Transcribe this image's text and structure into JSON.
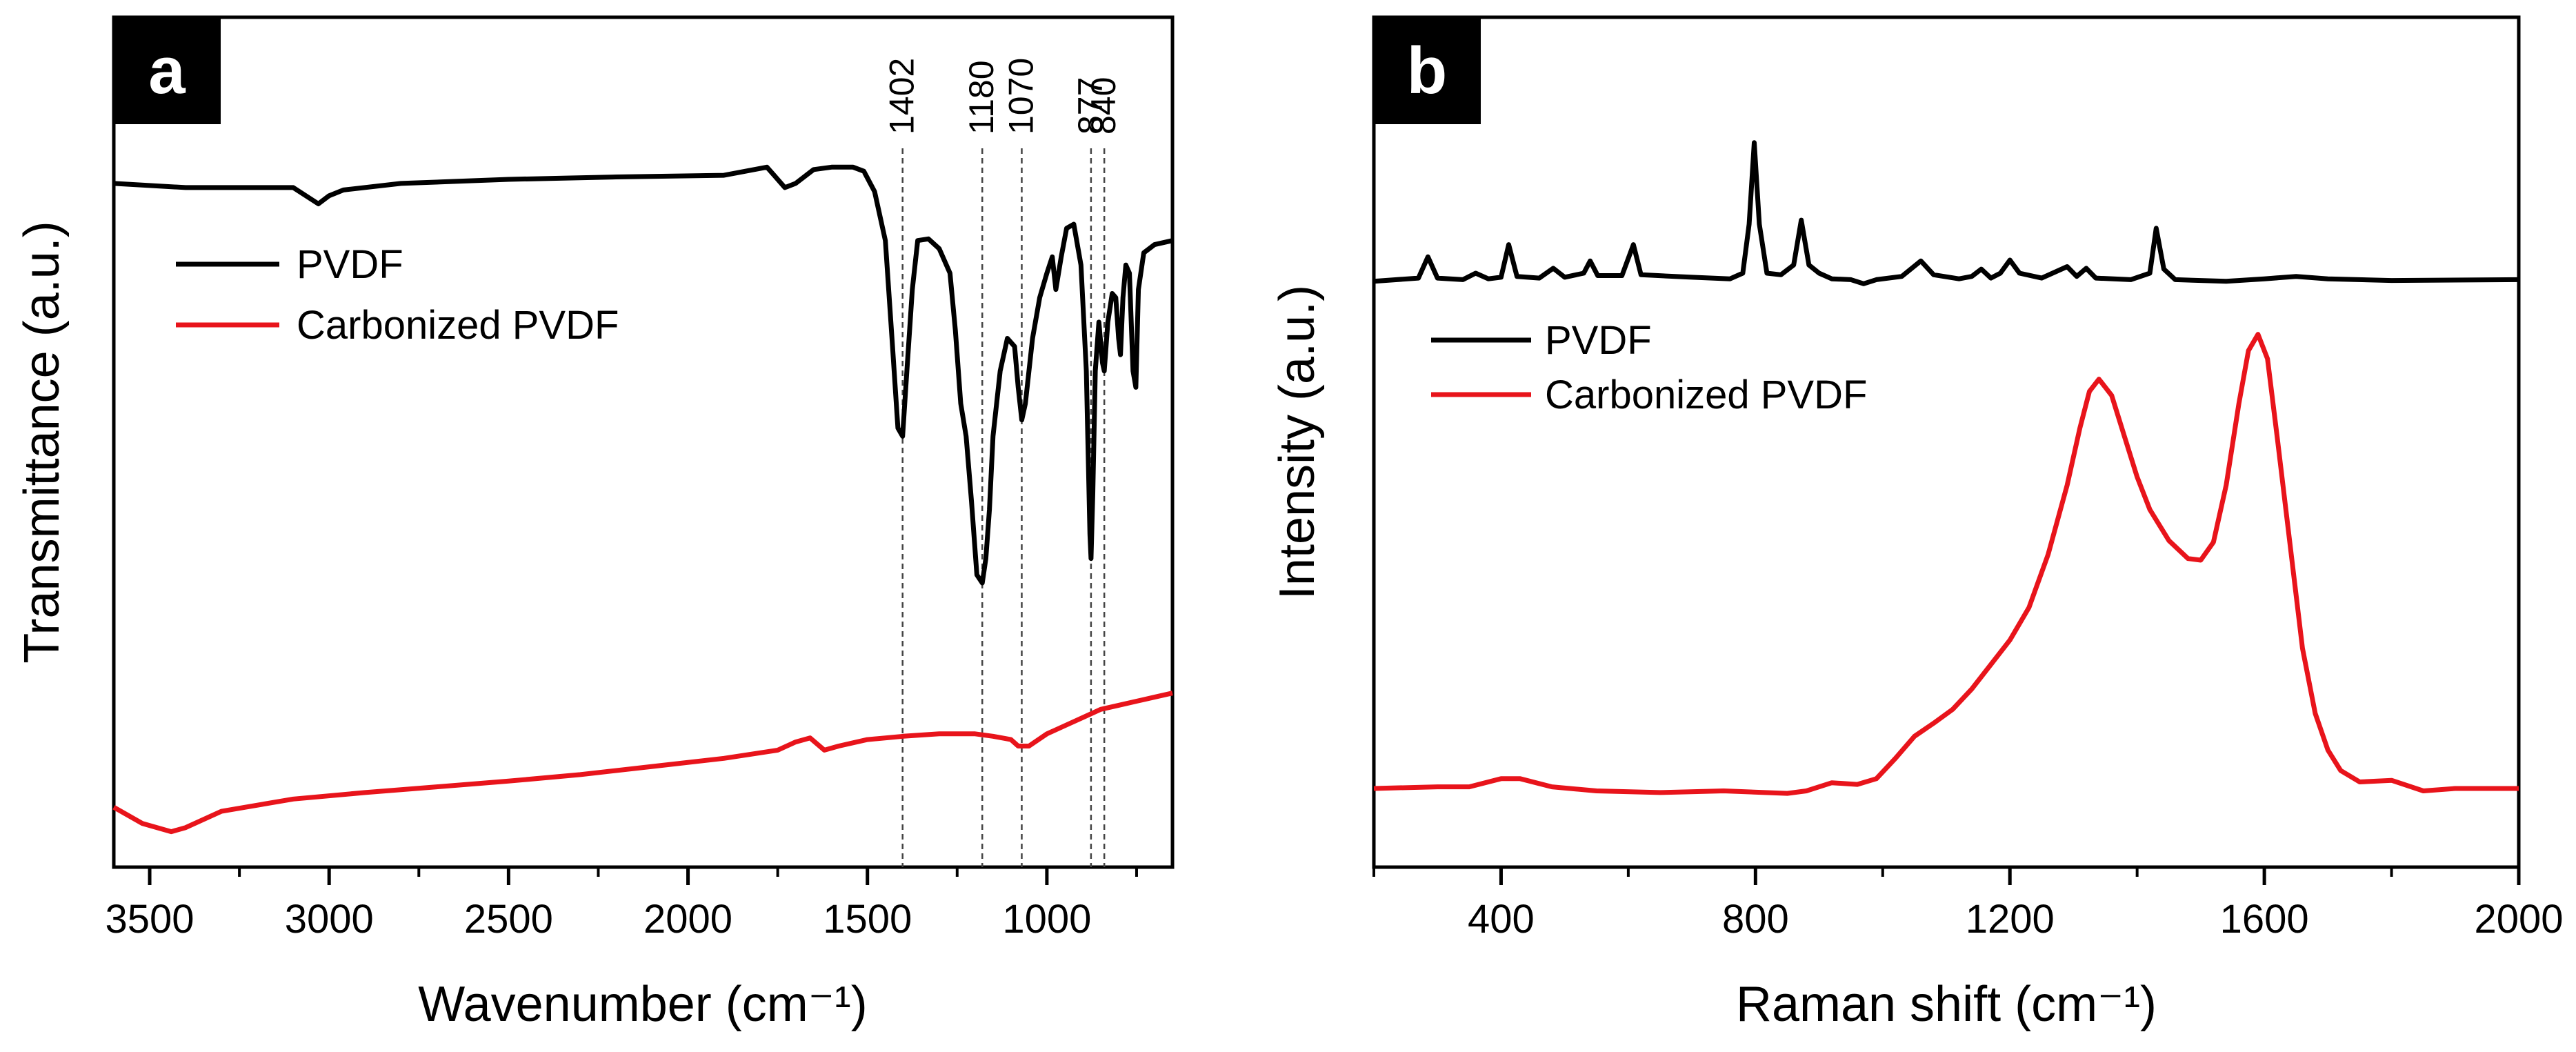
{
  "colors": {
    "pvdf": "#000000",
    "carbonized": "#e8141b",
    "axis": "#000000",
    "peak_line": "#555555"
  },
  "chart_data": [
    {
      "type": "line",
      "panel_label": "a",
      "title": "",
      "xlabel": "Wavenumber (cm⁻¹)",
      "ylabel": "Transmittance (a.u.)",
      "xlim": [
        3600,
        650
      ],
      "ylim": [
        0,
        1
      ],
      "x_reversed": true,
      "xticks": [
        3500,
        3000,
        2500,
        2000,
        1500,
        1000
      ],
      "xtick_labels": [
        "3500",
        "3000",
        "2500",
        "2000",
        "1500",
        "1000"
      ],
      "legend": [
        "PVDF",
        "Carbonized PVDF"
      ],
      "legend_position": "upper-left",
      "annotations": [
        {
          "x": 1402,
          "label": "1402"
        },
        {
          "x": 1180,
          "label": "1180"
        },
        {
          "x": 1070,
          "label": "1070"
        },
        {
          "x": 877,
          "label": "877"
        },
        {
          "x": 840,
          "label": "840"
        }
      ],
      "series": [
        {
          "name": "PVDF",
          "color": "#000000",
          "points": [
            [
              3600,
              0.83
            ],
            [
              3400,
              0.825
            ],
            [
              3100,
              0.825
            ],
            [
              3030,
              0.805
            ],
            [
              3000,
              0.815
            ],
            [
              2960,
              0.822
            ],
            [
              2800,
              0.83
            ],
            [
              2500,
              0.835
            ],
            [
              2200,
              0.838
            ],
            [
              1900,
              0.84
            ],
            [
              1780,
              0.85
            ],
            [
              1760,
              0.84
            ],
            [
              1730,
              0.825
            ],
            [
              1700,
              0.83
            ],
            [
              1650,
              0.847
            ],
            [
              1600,
              0.85
            ],
            [
              1540,
              0.85
            ],
            [
              1510,
              0.845
            ],
            [
              1480,
              0.82
            ],
            [
              1450,
              0.76
            ],
            [
              1430,
              0.63
            ],
            [
              1415,
              0.53
            ],
            [
              1402,
              0.52
            ],
            [
              1390,
              0.6
            ],
            [
              1375,
              0.7
            ],
            [
              1360,
              0.76
            ],
            [
              1330,
              0.762
            ],
            [
              1300,
              0.75
            ],
            [
              1270,
              0.72
            ],
            [
              1255,
              0.65
            ],
            [
              1240,
              0.56
            ],
            [
              1225,
              0.52
            ],
            [
              1210,
              0.44
            ],
            [
              1195,
              0.35
            ],
            [
              1180,
              0.34
            ],
            [
              1170,
              0.37
            ],
            [
              1160,
              0.43
            ],
            [
              1150,
              0.52
            ],
            [
              1130,
              0.6
            ],
            [
              1110,
              0.64
            ],
            [
              1090,
              0.63
            ],
            [
              1080,
              0.58
            ],
            [
              1070,
              0.54
            ],
            [
              1060,
              0.56
            ],
            [
              1040,
              0.64
            ],
            [
              1020,
              0.69
            ],
            [
              1000,
              0.72
            ],
            [
              985,
              0.74
            ],
            [
              975,
              0.7
            ],
            [
              960,
              0.74
            ],
            [
              945,
              0.775
            ],
            [
              925,
              0.78
            ],
            [
              905,
              0.73
            ],
            [
              890,
              0.6
            ],
            [
              880,
              0.4
            ],
            [
              877,
              0.37
            ],
            [
              872,
              0.45
            ],
            [
              865,
              0.6
            ],
            [
              855,
              0.66
            ],
            [
              845,
              0.61
            ],
            [
              840,
              0.6
            ],
            [
              830,
              0.66
            ],
            [
              818,
              0.695
            ],
            [
              808,
              0.69
            ],
            [
              800,
              0.64
            ],
            [
              795,
              0.62
            ],
            [
              788,
              0.69
            ],
            [
              780,
              0.73
            ],
            [
              770,
              0.72
            ],
            [
              760,
              0.6
            ],
            [
              752,
              0.58
            ],
            [
              745,
              0.7
            ],
            [
              730,
              0.745
            ],
            [
              700,
              0.755
            ],
            [
              650,
              0.76
            ]
          ]
        },
        {
          "name": "Carbonized PVDF",
          "color": "#e8141b",
          "points": [
            [
              3600,
              0.065
            ],
            [
              3520,
              0.045
            ],
            [
              3440,
              0.035
            ],
            [
              3400,
              0.04
            ],
            [
              3300,
              0.06
            ],
            [
              3100,
              0.075
            ],
            [
              2900,
              0.083
            ],
            [
              2700,
              0.09
            ],
            [
              2500,
              0.097
            ],
            [
              2300,
              0.105
            ],
            [
              2100,
              0.115
            ],
            [
              1900,
              0.125
            ],
            [
              1750,
              0.135
            ],
            [
              1700,
              0.145
            ],
            [
              1660,
              0.15
            ],
            [
              1620,
              0.135
            ],
            [
              1580,
              0.14
            ],
            [
              1500,
              0.148
            ],
            [
              1400,
              0.152
            ],
            [
              1300,
              0.155
            ],
            [
              1200,
              0.155
            ],
            [
              1150,
              0.152
            ],
            [
              1100,
              0.148
            ],
            [
              1080,
              0.14
            ],
            [
              1050,
              0.14
            ],
            [
              1000,
              0.155
            ],
            [
              950,
              0.165
            ],
            [
              900,
              0.175
            ],
            [
              850,
              0.185
            ],
            [
              800,
              0.19
            ],
            [
              700,
              0.2
            ],
            [
              650,
              0.205
            ]
          ]
        }
      ]
    },
    {
      "type": "line",
      "panel_label": "b",
      "title": "",
      "xlabel": "Raman shift (cm⁻¹)",
      "ylabel": "Intensity (a.u.)",
      "xlim": [
        200,
        2000
      ],
      "ylim": [
        0,
        1
      ],
      "xticks": [
        400,
        800,
        1200,
        1600,
        2000
      ],
      "xtick_labels": [
        "400",
        "800",
        "1200",
        "1600",
        "2000"
      ],
      "legend": [
        "PVDF",
        "Carbonized PVDF"
      ],
      "legend_position": "middle-left",
      "series": [
        {
          "name": "PVDF",
          "color": "#000000",
          "points": [
            [
              200,
              0.71
            ],
            [
              270,
              0.714
            ],
            [
              285,
              0.74
            ],
            [
              300,
              0.714
            ],
            [
              340,
              0.712
            ],
            [
              360,
              0.72
            ],
            [
              380,
              0.713
            ],
            [
              400,
              0.715
            ],
            [
              412,
              0.755
            ],
            [
              425,
              0.716
            ],
            [
              460,
              0.714
            ],
            [
              482,
              0.726
            ],
            [
              500,
              0.715
            ],
            [
              530,
              0.72
            ],
            [
              540,
              0.735
            ],
            [
              552,
              0.717
            ],
            [
              590,
              0.717
            ],
            [
              608,
              0.755
            ],
            [
              620,
              0.718
            ],
            [
              700,
              0.715
            ],
            [
              760,
              0.713
            ],
            [
              780,
              0.72
            ],
            [
              790,
              0.78
            ],
            [
              798,
              0.88
            ],
            [
              806,
              0.78
            ],
            [
              818,
              0.72
            ],
            [
              840,
              0.718
            ],
            [
              860,
              0.73
            ],
            [
              872,
              0.785
            ],
            [
              884,
              0.73
            ],
            [
              900,
              0.72
            ],
            [
              920,
              0.713
            ],
            [
              950,
              0.712
            ],
            [
              970,
              0.707
            ],
            [
              990,
              0.712
            ],
            [
              1030,
              0.716
            ],
            [
              1060,
              0.735
            ],
            [
              1080,
              0.718
            ],
            [
              1120,
              0.713
            ],
            [
              1140,
              0.716
            ],
            [
              1155,
              0.725
            ],
            [
              1170,
              0.714
            ],
            [
              1185,
              0.72
            ],
            [
              1200,
              0.736
            ],
            [
              1215,
              0.72
            ],
            [
              1250,
              0.714
            ],
            [
              1290,
              0.728
            ],
            [
              1305,
              0.716
            ],
            [
              1320,
              0.726
            ],
            [
              1335,
              0.714
            ],
            [
              1390,
              0.712
            ],
            [
              1420,
              0.72
            ],
            [
              1430,
              0.775
            ],
            [
              1442,
              0.725
            ],
            [
              1460,
              0.712
            ],
            [
              1540,
              0.71
            ],
            [
              1600,
              0.713
            ],
            [
              1650,
              0.716
            ],
            [
              1700,
              0.713
            ],
            [
              1800,
              0.711
            ],
            [
              2000,
              0.712
            ]
          ]
        },
        {
          "name": "Carbonized PVDF",
          "color": "#e8141b",
          "points": [
            [
              200,
              0.088
            ],
            [
              300,
              0.09
            ],
            [
              350,
              0.09
            ],
            [
              400,
              0.1
            ],
            [
              430,
              0.1
            ],
            [
              480,
              0.09
            ],
            [
              550,
              0.085
            ],
            [
              650,
              0.083
            ],
            [
              750,
              0.085
            ],
            [
              850,
              0.082
            ],
            [
              880,
              0.085
            ],
            [
              920,
              0.095
            ],
            [
              960,
              0.093
            ],
            [
              990,
              0.1
            ],
            [
              1020,
              0.125
            ],
            [
              1050,
              0.152
            ],
            [
              1080,
              0.168
            ],
            [
              1110,
              0.185
            ],
            [
              1140,
              0.21
            ],
            [
              1170,
              0.24
            ],
            [
              1200,
              0.27
            ],
            [
              1230,
              0.31
            ],
            [
              1260,
              0.375
            ],
            [
              1290,
              0.46
            ],
            [
              1310,
              0.53
            ],
            [
              1325,
              0.575
            ],
            [
              1340,
              0.59
            ],
            [
              1360,
              0.57
            ],
            [
              1380,
              0.52
            ],
            [
              1400,
              0.47
            ],
            [
              1420,
              0.43
            ],
            [
              1450,
              0.392
            ],
            [
              1480,
              0.37
            ],
            [
              1500,
              0.368
            ],
            [
              1520,
              0.39
            ],
            [
              1540,
              0.46
            ],
            [
              1560,
              0.56
            ],
            [
              1575,
              0.625
            ],
            [
              1590,
              0.645
            ],
            [
              1605,
              0.615
            ],
            [
              1620,
              0.52
            ],
            [
              1640,
              0.39
            ],
            [
              1660,
              0.26
            ],
            [
              1680,
              0.18
            ],
            [
              1700,
              0.135
            ],
            [
              1720,
              0.11
            ],
            [
              1750,
              0.096
            ],
            [
              1800,
              0.098
            ],
            [
              1850,
              0.085
            ],
            [
              1900,
              0.088
            ],
            [
              2000,
              0.088
            ]
          ]
        }
      ]
    }
  ]
}
